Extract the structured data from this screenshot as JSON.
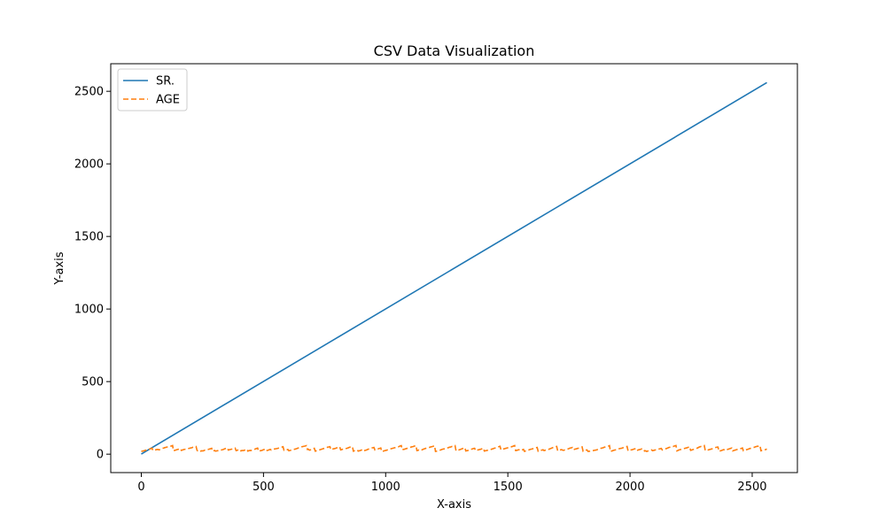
{
  "chart_data": {
    "type": "line",
    "title": "CSV Data Visualization",
    "xlabel": "X-axis",
    "ylabel": "Y-axis",
    "xlim": [
      -125,
      2685
    ],
    "ylim": [
      -127,
      2690
    ],
    "xticks": [
      0,
      500,
      1000,
      1500,
      2000,
      2500
    ],
    "yticks": [
      0,
      500,
      1000,
      1500,
      2000,
      2500
    ],
    "grid": false,
    "legend_position": "top-left",
    "series": [
      {
        "name": "SR.",
        "style": "solid",
        "color": "#1f77b4",
        "x": [
          0,
          2560
        ],
        "y": [
          1,
          2560
        ]
      },
      {
        "name": "AGE",
        "style": "dashed",
        "color": "#ff7f0e",
        "x_start": 0,
        "x_end": 2560,
        "y_min": 18,
        "y_max": 60,
        "description_values_range": [
          18,
          60
        ]
      }
    ]
  }
}
